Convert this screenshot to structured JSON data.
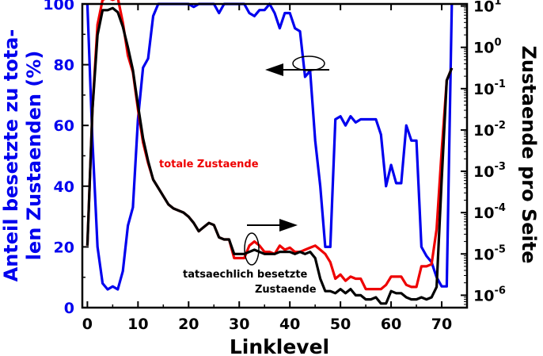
{
  "chart_data": {
    "type": "line",
    "xlabel": "Linklevel",
    "ylabel_left_lines": [
      "Anteil besetzte zu tota-",
      "len Zustaenden (%)"
    ],
    "ylabel_right": "Zustaende pro Seite",
    "xlim": [
      -1,
      75
    ],
    "ylim_left": [
      0,
      100
    ],
    "ylim_right_log10": [
      -6.3,
      1.05
    ],
    "x_ticks": [
      0,
      10,
      20,
      30,
      40,
      50,
      60,
      70
    ],
    "y_left_ticks": [
      0,
      20,
      40,
      60,
      80,
      100
    ],
    "y_right_ticks": [
      {
        "exp": 1,
        "label": "10",
        "sup": "1"
      },
      {
        "exp": 0,
        "label": "10",
        "sup": "0"
      },
      {
        "exp": -1,
        "label": "10",
        "sup": "-1"
      },
      {
        "exp": -2,
        "label": "10",
        "sup": "-2"
      },
      {
        "exp": -3,
        "label": "10",
        "sup": "-3"
      },
      {
        "exp": -4,
        "label": "10",
        "sup": "-4"
      },
      {
        "exp": -5,
        "label": "10",
        "sup": "-5"
      },
      {
        "exp": -6,
        "label": "10",
        "sup": "-6"
      }
    ],
    "colors": {
      "blue": "#0000ee",
      "red": "#ee0000",
      "black": "#000000"
    },
    "series": [
      {
        "axis": "left",
        "color": "#0000ee",
        "x": [
          0,
          1,
          2,
          3,
          4,
          5,
          6,
          7,
          8,
          9,
          10,
          11,
          12,
          13,
          14,
          15,
          16,
          17,
          18,
          19,
          20,
          21,
          22,
          23,
          24,
          25,
          26,
          27,
          28,
          29,
          30,
          31,
          32,
          33,
          34,
          35,
          36,
          37,
          38,
          39,
          40,
          41,
          42,
          43,
          44,
          45,
          46,
          47,
          48,
          49,
          50,
          51,
          52,
          53,
          54,
          55,
          56,
          57,
          58,
          59,
          60,
          61,
          62,
          63,
          64,
          65,
          66,
          67,
          68,
          69,
          70,
          71,
          72
        ],
        "y": [
          100,
          55,
          20,
          8,
          6,
          7,
          6,
          12,
          27,
          33,
          62,
          79,
          82,
          96,
          100,
          100,
          100,
          100,
          100,
          100,
          100,
          99,
          100,
          100,
          100,
          100,
          97,
          100,
          100,
          100,
          100,
          100,
          97,
          96,
          98,
          98,
          100,
          97,
          92,
          97,
          97,
          92,
          91,
          76,
          78,
          55,
          40,
          20,
          20,
          62,
          63,
          60,
          63,
          61,
          62,
          62,
          62,
          62,
          57,
          40,
          47,
          41,
          41,
          60,
          55,
          55,
          20,
          17,
          15,
          10,
          7,
          7,
          100
        ]
      },
      {
        "axis": "right",
        "color": "#ee0000",
        "label": "totale Zustaende",
        "x": [
          0,
          1,
          2,
          3,
          4,
          5,
          6,
          7,
          8,
          9,
          10,
          11,
          12,
          13,
          14,
          15,
          16,
          17,
          18,
          19,
          20,
          21,
          22,
          23,
          24,
          25,
          26,
          27,
          28,
          29,
          30,
          31,
          32,
          33,
          34,
          35,
          36,
          37,
          38,
          39,
          40,
          41,
          42,
          43,
          44,
          45,
          46,
          47,
          48,
          49,
          50,
          51,
          52,
          53,
          54,
          55,
          56,
          57,
          58,
          59,
          60,
          61,
          62,
          63,
          64,
          65,
          66,
          67,
          68,
          69,
          70,
          71,
          72
        ],
        "y_log10": [
          -4.8,
          -1.5,
          0.55,
          1.15,
          1.2,
          1.15,
          1.2,
          0.6,
          -0.2,
          -0.6,
          -1.5,
          -2.3,
          -2.8,
          -3.2,
          -3.4,
          -3.6,
          -3.8,
          -3.9,
          -3.95,
          -4.0,
          -4.1,
          -4.25,
          -4.45,
          -4.35,
          -4.25,
          -4.3,
          -4.6,
          -4.65,
          -4.65,
          -5.1,
          -5.1,
          -5.1,
          -4.8,
          -4.7,
          -4.8,
          -4.95,
          -4.95,
          -5.0,
          -4.8,
          -4.9,
          -4.85,
          -4.95,
          -4.95,
          -4.9,
          -4.85,
          -4.8,
          -4.9,
          -5.0,
          -5.2,
          -5.6,
          -5.5,
          -5.65,
          -5.55,
          -5.6,
          -5.6,
          -5.85,
          -5.85,
          -5.85,
          -5.85,
          -5.75,
          -5.55,
          -5.55,
          -5.55,
          -5.75,
          -5.8,
          -5.8,
          -5.3,
          -5.3,
          -5.25,
          -4.4,
          -2.5,
          -0.8,
          -0.5
        ]
      },
      {
        "axis": "right",
        "color": "#000000",
        "label": "tatsaechlich besetzte Zustaende",
        "x": [
          0,
          1,
          2,
          3,
          4,
          5,
          6,
          7,
          8,
          9,
          10,
          11,
          12,
          13,
          14,
          15,
          16,
          17,
          18,
          19,
          20,
          21,
          22,
          23,
          24,
          25,
          26,
          27,
          28,
          29,
          30,
          31,
          32,
          33,
          34,
          35,
          36,
          37,
          38,
          39,
          40,
          41,
          42,
          43,
          44,
          45,
          46,
          47,
          48,
          49,
          50,
          51,
          52,
          53,
          54,
          55,
          56,
          57,
          58,
          59,
          60,
          61,
          62,
          63,
          64,
          65,
          66,
          67,
          68,
          69,
          70,
          71,
          72
        ],
        "y_log10": [
          -4.8,
          -1.5,
          0.3,
          0.9,
          0.9,
          0.95,
          0.85,
          0.5,
          0,
          -0.55,
          -1.4,
          -2.2,
          -2.75,
          -3.2,
          -3.4,
          -3.6,
          -3.8,
          -3.9,
          -3.95,
          -4.0,
          -4.1,
          -4.25,
          -4.45,
          -4.35,
          -4.25,
          -4.3,
          -4.6,
          -4.65,
          -4.65,
          -5.0,
          -5.0,
          -5.0,
          -4.95,
          -4.9,
          -4.95,
          -5.0,
          -5.0,
          -5.0,
          -4.95,
          -4.95,
          -4.95,
          -5.0,
          -4.95,
          -5.0,
          -4.95,
          -5.1,
          -5.6,
          -5.9,
          -5.9,
          -5.95,
          -5.85,
          -5.95,
          -5.85,
          -6.0,
          -6.0,
          -6.1,
          -6.1,
          -6.05,
          -6.2,
          -6.2,
          -5.9,
          -5.95,
          -5.95,
          -6.05,
          -6.1,
          -6.1,
          -6.05,
          -6.1,
          -6.05,
          -5.8,
          -3.2,
          -0.8,
          -0.5
        ]
      }
    ]
  },
  "annotations": {
    "red_label": "totale Zustaende",
    "black_label_line1": "tatsaechlich besetzte",
    "black_label_line2": "Zustaende"
  }
}
